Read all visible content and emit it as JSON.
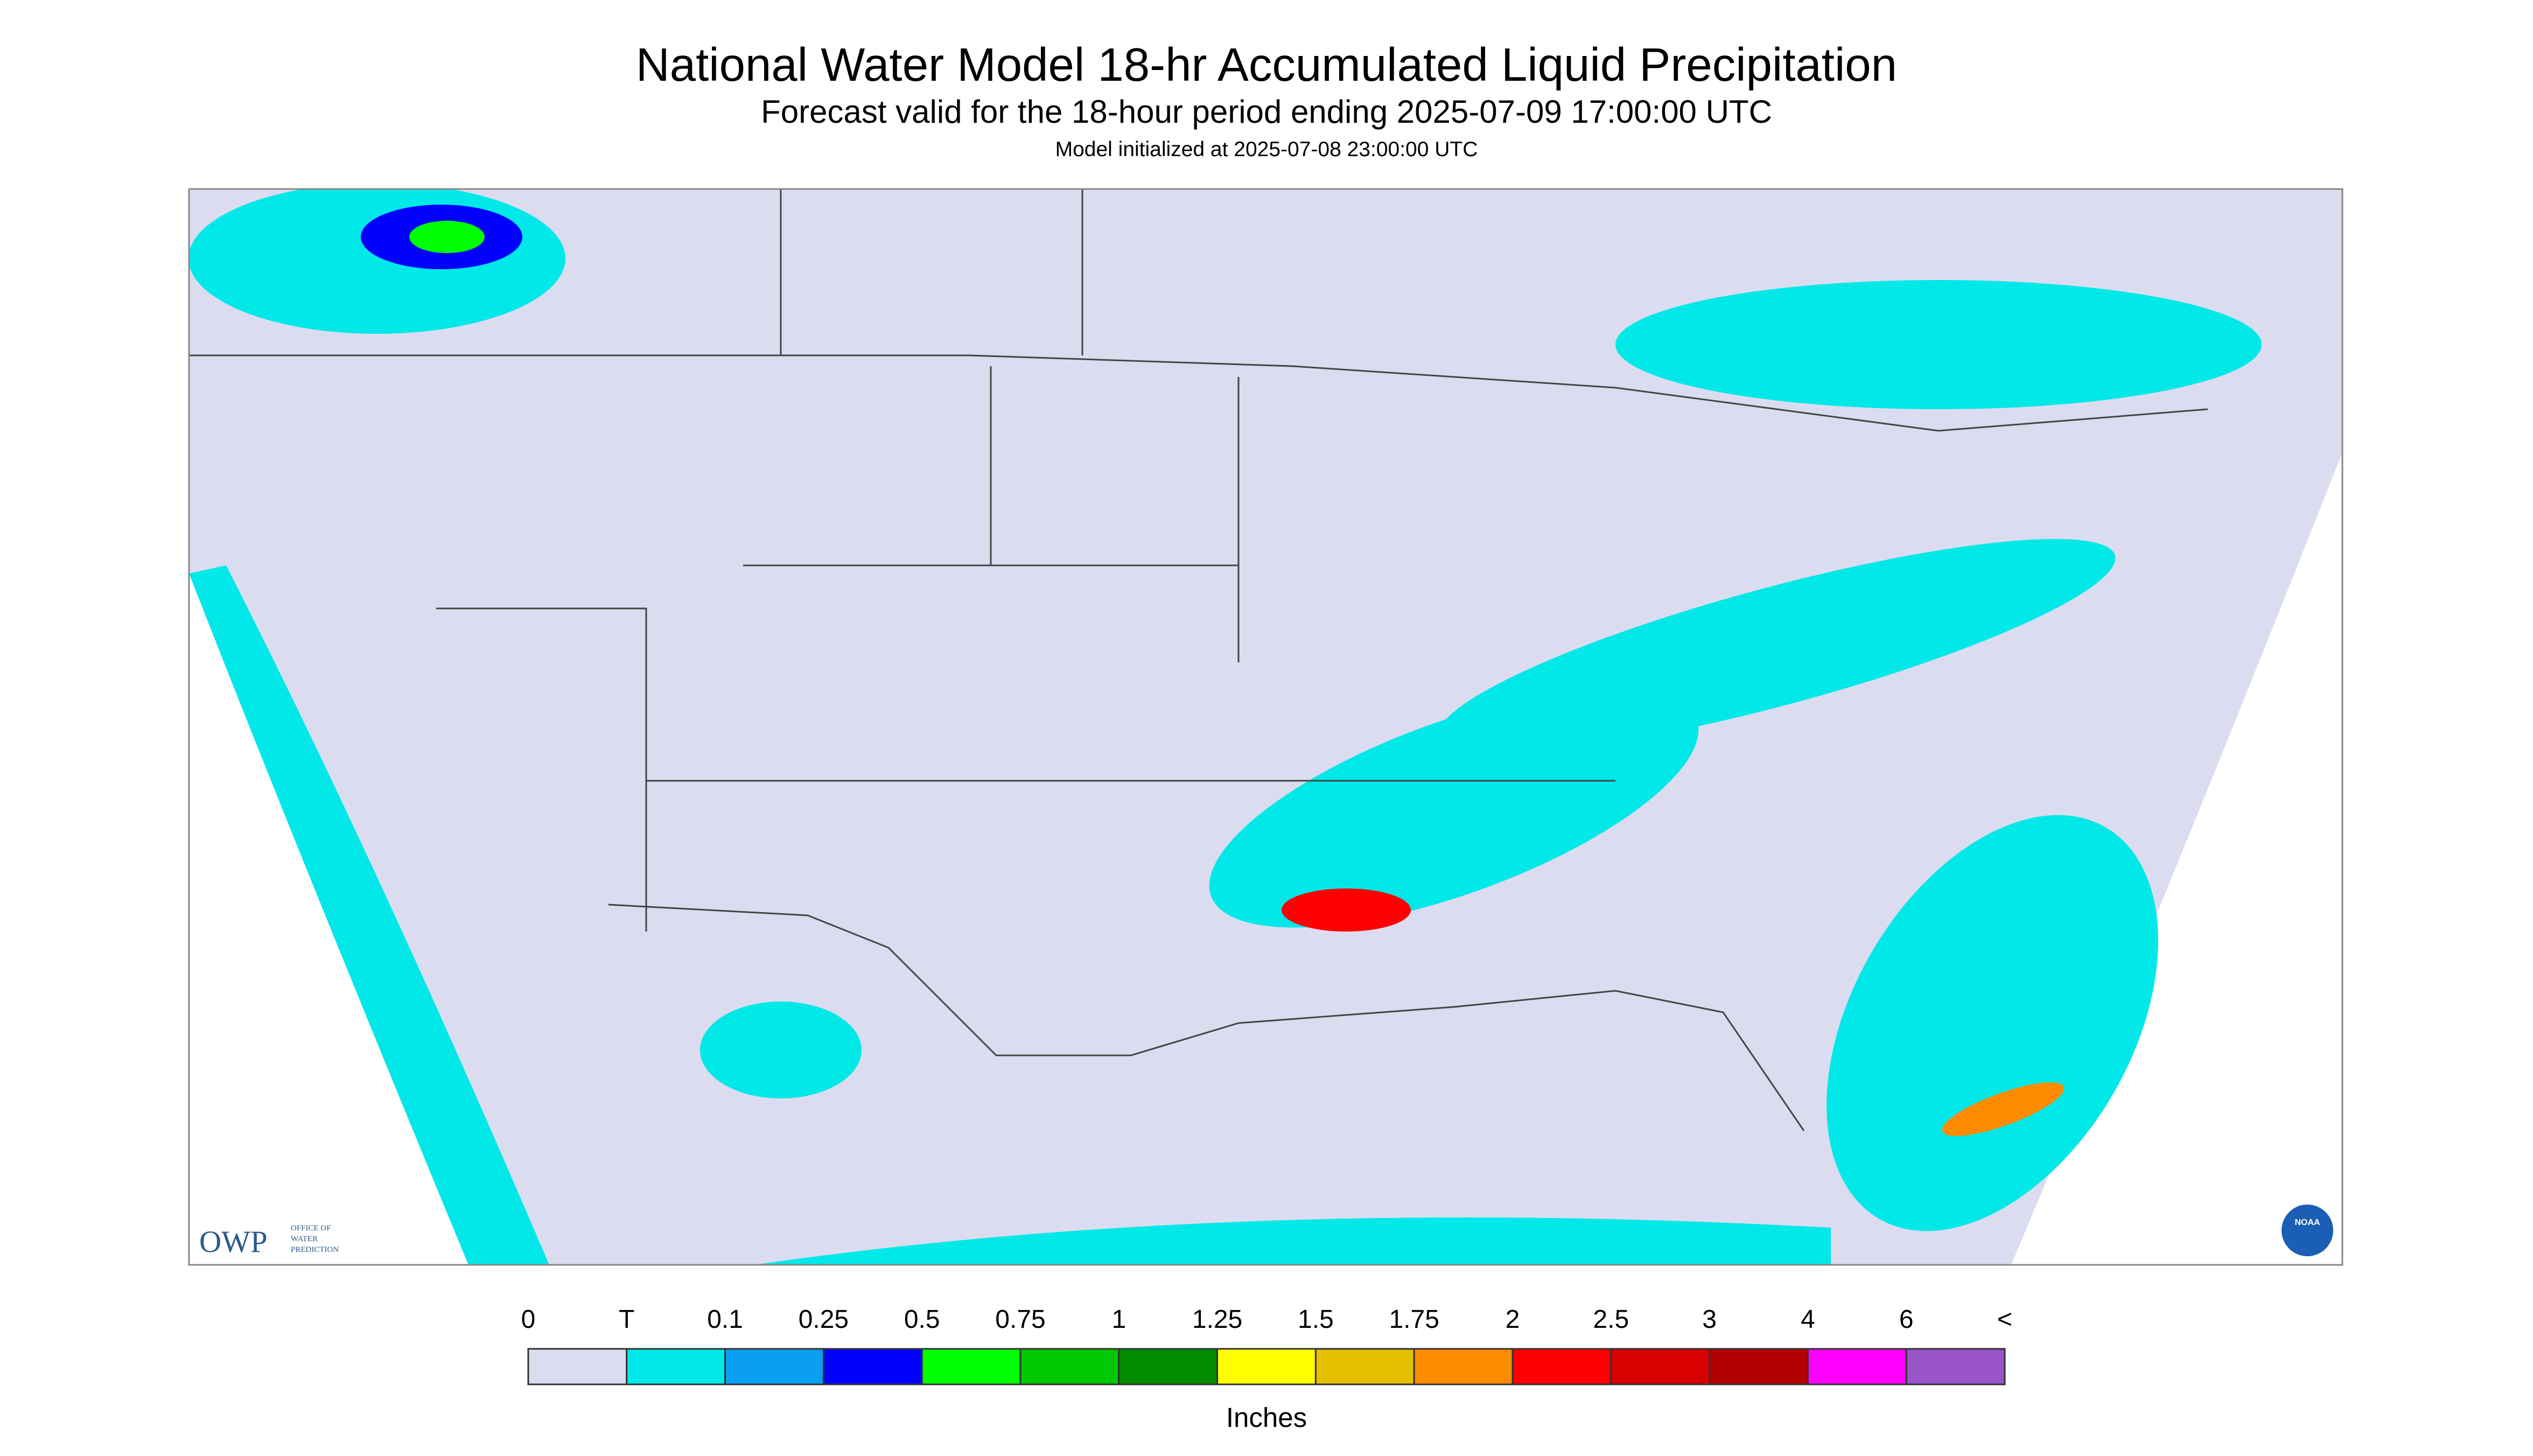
{
  "header": {
    "title": "National Water Model 18-hr Accumulated Liquid Precipitation",
    "subtitle": "Forecast valid for the 18-hour period ending 2025-07-09 17:00:00 UTC",
    "init": "Model initialized at 2025-07-08 23:00:00 UTC"
  },
  "logos": {
    "owp": "OWP",
    "owp_name": [
      "OFFICE OF",
      "WATER",
      "PREDICTION"
    ],
    "noaa": "NOAA"
  },
  "legend": {
    "labels": [
      "0",
      "T",
      "0.1",
      "0.25",
      "0.5",
      "0.75",
      "1",
      "1.25",
      "1.5",
      "1.75",
      "2",
      "2.5",
      "3",
      "4",
      "6",
      "<"
    ],
    "colors": [
      "#dcdcf0",
      "#00e8e8",
      "#0aa0f0",
      "#0000ff",
      "#00ff00",
      "#00c800",
      "#008c00",
      "#ffff00",
      "#e6be00",
      "#ff8c00",
      "#ff0000",
      "#d80000",
      "#b40000",
      "#ff00ff",
      "#9955c9"
    ],
    "unit": "Inches"
  }
}
